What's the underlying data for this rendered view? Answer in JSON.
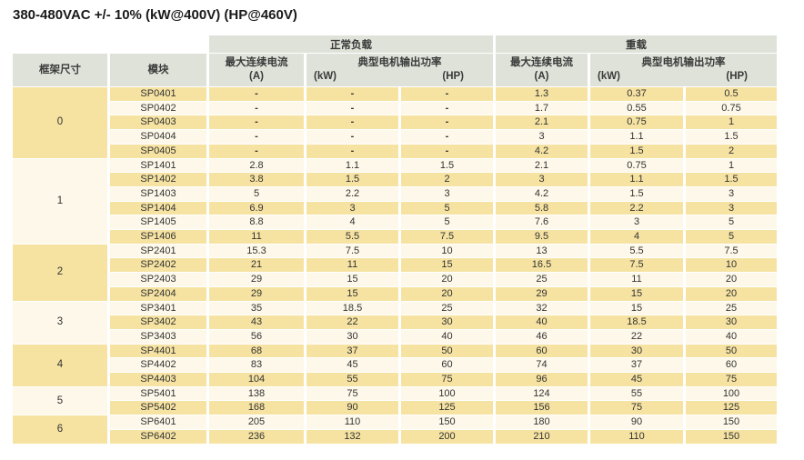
{
  "title": "380-480VAC +/- 10% (kW@400V) (HP@460V)",
  "colors": {
    "header_bg": "#dfe2d9",
    "row_yellow": "#f6e3a2",
    "row_cream": "#fdf8e9",
    "text": "#333333"
  },
  "table": {
    "group_headers": {
      "normal": "正常负载",
      "heavy": "重载"
    },
    "columns": {
      "frame": "框架尺寸",
      "module": "模块",
      "max_current": "最大连续电流",
      "current_unit": "(A)",
      "motor_power": "典型电机输出功率",
      "kw_unit": "(kW)",
      "hp_unit": "(HP)"
    },
    "groups": [
      {
        "frame": "0",
        "rows": [
          {
            "module": "SP0401",
            "normal": [
              "-",
              "-",
              "-"
            ],
            "heavy": [
              "1.3",
              "0.37",
              "0.5"
            ]
          },
          {
            "module": "SP0402",
            "normal": [
              "-",
              "-",
              "-"
            ],
            "heavy": [
              "1.7",
              "0.55",
              "0.75"
            ]
          },
          {
            "module": "SP0403",
            "normal": [
              "-",
              "-",
              "-"
            ],
            "heavy": [
              "2.1",
              "0.75",
              "1"
            ]
          },
          {
            "module": "SP0404",
            "normal": [
              "-",
              "-",
              "-"
            ],
            "heavy": [
              "3",
              "1.1",
              "1.5"
            ]
          },
          {
            "module": "SP0405",
            "normal": [
              "-",
              "-",
              "-"
            ],
            "heavy": [
              "4.2",
              "1.5",
              "2"
            ]
          }
        ]
      },
      {
        "frame": "1",
        "rows": [
          {
            "module": "SP1401",
            "normal": [
              "2.8",
              "1.1",
              "1.5"
            ],
            "heavy": [
              "2.1",
              "0.75",
              "1"
            ]
          },
          {
            "module": "SP1402",
            "normal": [
              "3.8",
              "1.5",
              "2"
            ],
            "heavy": [
              "3",
              "1.1",
              "1.5"
            ]
          },
          {
            "module": "SP1403",
            "normal": [
              "5",
              "2.2",
              "3"
            ],
            "heavy": [
              "4.2",
              "1.5",
              "3"
            ]
          },
          {
            "module": "SP1404",
            "normal": [
              "6.9",
              "3",
              "5"
            ],
            "heavy": [
              "5.8",
              "2.2",
              "3"
            ]
          },
          {
            "module": "SP1405",
            "normal": [
              "8.8",
              "4",
              "5"
            ],
            "heavy": [
              "7.6",
              "3",
              "5"
            ]
          },
          {
            "module": "SP1406",
            "normal": [
              "11",
              "5.5",
              "7.5"
            ],
            "heavy": [
              "9.5",
              "4",
              "5"
            ]
          }
        ]
      },
      {
        "frame": "2",
        "rows": [
          {
            "module": "SP2401",
            "normal": [
              "15.3",
              "7.5",
              "10"
            ],
            "heavy": [
              "13",
              "5.5",
              "7.5"
            ]
          },
          {
            "module": "SP2402",
            "normal": [
              "21",
              "11",
              "15"
            ],
            "heavy": [
              "16.5",
              "7.5",
              "10"
            ]
          },
          {
            "module": "SP2403",
            "normal": [
              "29",
              "15",
              "20"
            ],
            "heavy": [
              "25",
              "11",
              "20"
            ]
          },
          {
            "module": "SP2404",
            "normal": [
              "29",
              "15",
              "20"
            ],
            "heavy": [
              "29",
              "15",
              "20"
            ]
          }
        ]
      },
      {
        "frame": "3",
        "rows": [
          {
            "module": "SP3401",
            "normal": [
              "35",
              "18.5",
              "25"
            ],
            "heavy": [
              "32",
              "15",
              "25"
            ]
          },
          {
            "module": "SP3402",
            "normal": [
              "43",
              "22",
              "30"
            ],
            "heavy": [
              "40",
              "18.5",
              "30"
            ]
          },
          {
            "module": "SP3403",
            "normal": [
              "56",
              "30",
              "40"
            ],
            "heavy": [
              "46",
              "22",
              "40"
            ]
          }
        ]
      },
      {
        "frame": "4",
        "rows": [
          {
            "module": "SP4401",
            "normal": [
              "68",
              "37",
              "50"
            ],
            "heavy": [
              "60",
              "30",
              "50"
            ]
          },
          {
            "module": "SP4402",
            "normal": [
              "83",
              "45",
              "60"
            ],
            "heavy": [
              "74",
              "37",
              "60"
            ]
          },
          {
            "module": "SP4403",
            "normal": [
              "104",
              "55",
              "75"
            ],
            "heavy": [
              "96",
              "45",
              "75"
            ]
          }
        ]
      },
      {
        "frame": "5",
        "rows": [
          {
            "module": "SP5401",
            "normal": [
              "138",
              "75",
              "100"
            ],
            "heavy": [
              "124",
              "55",
              "100"
            ]
          },
          {
            "module": "SP5402",
            "normal": [
              "168",
              "90",
              "125"
            ],
            "heavy": [
              "156",
              "75",
              "125"
            ]
          }
        ]
      },
      {
        "frame": "6",
        "rows": [
          {
            "module": "SP6401",
            "normal": [
              "205",
              "110",
              "150"
            ],
            "heavy": [
              "180",
              "90",
              "150"
            ]
          },
          {
            "module": "SP6402",
            "normal": [
              "236",
              "132",
              "200"
            ],
            "heavy": [
              "210",
              "110",
              "150"
            ]
          }
        ]
      }
    ]
  }
}
